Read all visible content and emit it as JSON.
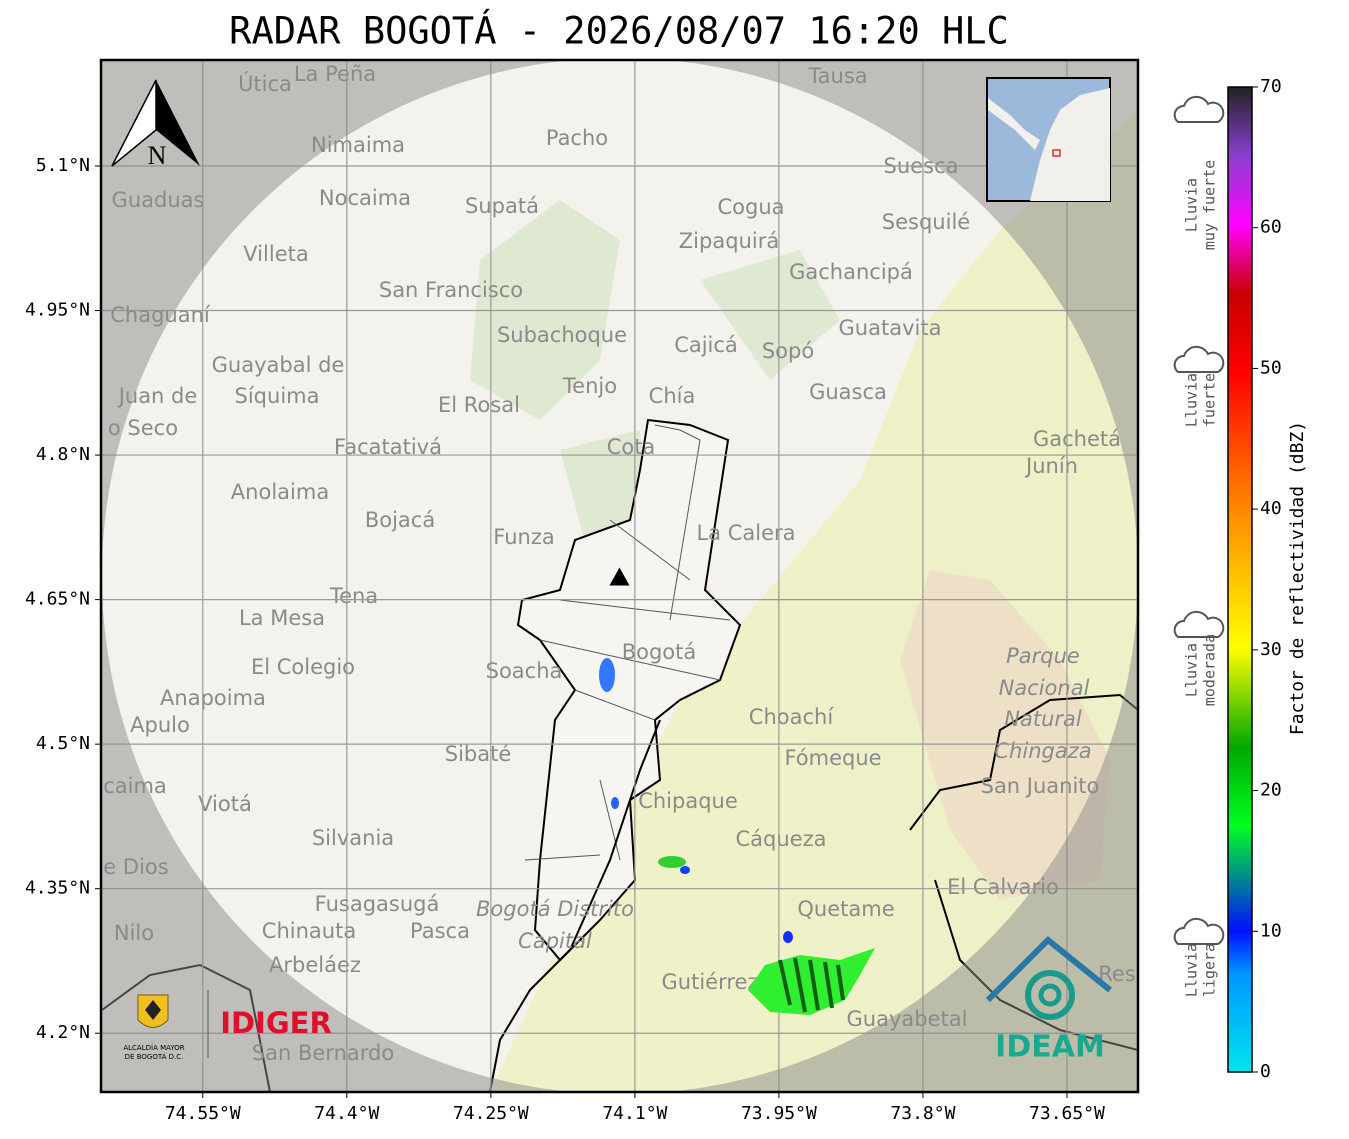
{
  "title": "RADAR BOGOTÁ - 2026/08/07 16:20 HLC",
  "map": {
    "xlim": [
      -74.656,
      -73.576
    ],
    "ylim": [
      4.139,
      5.21
    ],
    "xticks": [
      {
        "value": -74.55,
        "label": "74.55°W"
      },
      {
        "value": -74.4,
        "label": "74.4°W"
      },
      {
        "value": -74.25,
        "label": "74.25°W"
      },
      {
        "value": -74.1,
        "label": "74.1°W"
      },
      {
        "value": -73.95,
        "label": "73.95°W"
      },
      {
        "value": -73.8,
        "label": "73.8°W"
      },
      {
        "value": -73.65,
        "label": "73.65°W"
      }
    ],
    "yticks": [
      {
        "value": 4.2,
        "label": "4.2°N"
      },
      {
        "value": 4.35,
        "label": "4.35°N"
      },
      {
        "value": 4.5,
        "label": "4.5°N"
      },
      {
        "value": 4.65,
        "label": "4.65°N"
      },
      {
        "value": 4.8,
        "label": "4.8°N"
      },
      {
        "value": 4.95,
        "label": "4.95°N"
      },
      {
        "value": 5.1,
        "label": "5.1°N"
      }
    ],
    "grid": true,
    "radar_site": {
      "lon": -74.116,
      "lat": 4.673
    },
    "north_arrow": "N",
    "places": [
      "Útica",
      "La Peña",
      "Tausa",
      "Pacho",
      "Nimaima",
      "Guaduas",
      "Nocaima",
      "Supatá",
      "Cogua",
      "Suesca",
      "Sesquilé",
      "Zipaquirá",
      "Villeta",
      "Gachancipá",
      "San Francisco",
      "Chaguaní",
      "Subachoque",
      "Guatavita",
      "Cajicá",
      "Sopó",
      "Guayabal de",
      "Síquima",
      "Tenjo",
      "Chía",
      "Guasca",
      "Juan de",
      "o Seco",
      "El Rosal",
      "Facatativá",
      "Gachetá",
      "Junín",
      "Cota",
      "Anolaima",
      "Bojacá",
      "Funza",
      "La Calera",
      "Tena",
      "La Mesa",
      "Bogotá",
      "Parque",
      "Nacional",
      "Natural",
      "Chingaza",
      "El Colegio",
      "Soacha",
      "Anapoima",
      "Apulo",
      "Choachí",
      "Sibaté",
      "Fómeque",
      "San Juanito",
      "caima",
      "Viotá",
      "Chipaque",
      "Silvania",
      "Cáqueza",
      "e Dios",
      "El Calvario",
      "Fusagasugá",
      "Bogotá Distrito",
      "Capital",
      "Quetame",
      "Nilo",
      "Chinauta",
      "Pasca",
      "Arbeláez",
      "Gutiérrez",
      "Res",
      "Guayabetal",
      "San Bernardo"
    ]
  },
  "colorbar": {
    "label": "Factor de reflectividad (dBZ)",
    "lim": [
      0,
      70
    ],
    "ticks": [
      0,
      10,
      20,
      30,
      40,
      50,
      60,
      70
    ],
    "categories": [
      [
        "Lluvia",
        "muy fuerte"
      ],
      [
        "Lluvia",
        "fuerte"
      ],
      [
        "Lluvia",
        "moderada"
      ],
      [
        "Lluvia",
        "ligera"
      ]
    ]
  },
  "logos": {
    "alcaldia": [
      "ALCALDÍA MAYOR",
      "DE BOGOTÁ D.C."
    ],
    "idiger": "IDIGER",
    "ideam": "IDEAM"
  }
}
